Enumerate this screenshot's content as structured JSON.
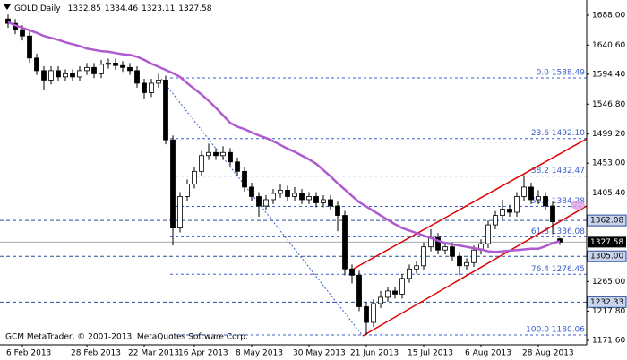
{
  "chart_data": {
    "type": "candlestick",
    "symbol": "GOLD,Daily",
    "footer": "GCM MetaTrader, © 2001-2013, MetaQuotes Software Corp.",
    "categories": [
      null,
      null,
      "6 Feb 2013",
      null,
      null,
      null,
      null,
      null,
      null,
      null,
      null,
      "28 Feb 2013",
      null,
      null,
      null,
      null,
      null,
      null,
      null,
      "22 Mar 2013",
      null,
      null,
      null,
      null,
      null,
      null,
      "16 Apr 2013",
      null,
      null,
      null,
      null,
      null,
      null,
      null,
      "8 May 2013",
      null,
      null,
      null,
      null,
      null,
      null,
      null,
      "30 May 2013",
      null,
      null,
      null,
      null,
      null,
      null,
      null,
      "21 Jun 2013",
      null,
      null,
      null,
      null,
      null,
      null,
      null,
      "15 Jul 2013",
      null,
      null,
      null,
      null,
      null,
      null,
      null,
      "6 Aug 2013",
      null,
      null,
      null,
      null,
      null,
      null,
      null,
      "28 Aug 2013",
      null,
      null,
      null
    ],
    "open": [
      1682,
      1675,
      1665,
      1655,
      1620,
      1600,
      1585,
      1600,
      1590,
      1595,
      1590,
      1600,
      1605,
      1595,
      1610,
      1612,
      1608,
      1605,
      1600,
      1580,
      1565,
      1580,
      1585,
      1490,
      1350,
      1400,
      1420,
      1440,
      1465,
      1470,
      1465,
      1470,
      1455,
      1440,
      1415,
      1400,
      1385,
      1395,
      1405,
      1410,
      1400,
      1405,
      1395,
      1400,
      1390,
      1395,
      1385,
      1370,
      1285,
      1275,
      1225,
      1200,
      1230,
      1240,
      1250,
      1245,
      1270,
      1285,
      1290,
      1320,
      1335,
      1315,
      1320,
      1305,
      1290,
      1295,
      1315,
      1325,
      1355,
      1370,
      1380,
      1375,
      1400,
      1415,
      1395,
      1400,
      1385,
      1332.85
    ],
    "high": [
      1689,
      1682,
      1672,
      1662,
      1627,
      1607,
      1607,
      1607,
      1602,
      1602,
      1607,
      1612,
      1612,
      1617,
      1619,
      1619,
      1615,
      1612,
      1607,
      1587,
      1587,
      1595,
      1592,
      1497,
      1407,
      1427,
      1447,
      1472,
      1484,
      1477,
      1480,
      1477,
      1462,
      1447,
      1422,
      1407,
      1402,
      1412,
      1420,
      1417,
      1415,
      1412,
      1407,
      1407,
      1402,
      1402,
      1392,
      1377,
      1292,
      1282,
      1232,
      1237,
      1250,
      1257,
      1257,
      1277,
      1292,
      1297,
      1327,
      1348,
      1342,
      1327,
      1327,
      1312,
      1302,
      1322,
      1332,
      1362,
      1377,
      1395,
      1387,
      1407,
      1434,
      1422,
      1410,
      1407,
      1392,
      1334.46
    ],
    "low": [
      1668,
      1658,
      1648,
      1613,
      1593,
      1570,
      1578,
      1583,
      1583,
      1583,
      1583,
      1593,
      1588,
      1588,
      1603,
      1601,
      1598,
      1593,
      1573,
      1555,
      1558,
      1573,
      1483,
      1322,
      1343,
      1393,
      1413,
      1433,
      1458,
      1458,
      1458,
      1448,
      1433,
      1408,
      1393,
      1368,
      1378,
      1388,
      1398,
      1393,
      1393,
      1388,
      1388,
      1383,
      1383,
      1378,
      1345,
      1275,
      1262,
      1218,
      1180,
      1193,
      1223,
      1233,
      1238,
      1238,
      1263,
      1278,
      1283,
      1313,
      1308,
      1308,
      1298,
      1275,
      1283,
      1288,
      1308,
      1318,
      1348,
      1363,
      1368,
      1368,
      1393,
      1388,
      1388,
      1378,
      1340,
      1323.11
    ],
    "close": [
      1675,
      1665,
      1655,
      1620,
      1600,
      1585,
      1600,
      1590,
      1595,
      1590,
      1600,
      1605,
      1595,
      1610,
      1612,
      1608,
      1605,
      1600,
      1580,
      1565,
      1580,
      1585,
      1490,
      1350,
      1400,
      1420,
      1440,
      1465,
      1470,
      1465,
      1470,
      1455,
      1440,
      1415,
      1400,
      1385,
      1395,
      1405,
      1410,
      1400,
      1405,
      1395,
      1400,
      1390,
      1395,
      1385,
      1370,
      1285,
      1275,
      1225,
      1200,
      1230,
      1240,
      1250,
      1245,
      1270,
      1285,
      1290,
      1320,
      1335,
      1315,
      1320,
      1305,
      1290,
      1295,
      1315,
      1325,
      1355,
      1370,
      1380,
      1375,
      1400,
      1415,
      1395,
      1400,
      1385,
      1360,
      1327.58
    ],
    "ma": {
      "color": "#b05ad0",
      "values": [
        1677,
        1672,
        1668,
        1664,
        1660,
        1655,
        1652,
        1649,
        1645,
        1642,
        1639,
        1635,
        1633,
        1631,
        1630,
        1628,
        1626,
        1625,
        1622,
        1617,
        1611,
        1606,
        1601,
        1596,
        1590,
        1580,
        1571,
        1562,
        1552,
        1541,
        1529,
        1517,
        1511,
        1507,
        1502,
        1497,
        1493,
        1488,
        1482,
        1476,
        1471,
        1465,
        1459,
        1452,
        1442,
        1432,
        1421,
        1411,
        1401,
        1391,
        1384,
        1377,
        1370,
        1363,
        1356,
        1350,
        1346,
        1342,
        1338,
        1334,
        1330,
        1326,
        1324,
        1322,
        1320,
        1318,
        1316,
        1313,
        1312,
        1313,
        1314,
        1315,
        1316,
        1317,
        1317,
        1321,
        1326,
        1329
      ]
    },
    "ylim": [
      1164.5,
      1712.2
    ],
    "yticks": [
      {
        "value": 1688,
        "label": "1688.00"
      },
      {
        "value": 1640.6,
        "label": "1640.60"
      },
      {
        "value": 1594.4,
        "label": "1594.40"
      },
      {
        "value": 1546.8,
        "label": "1546.80"
      },
      {
        "value": 1499.2,
        "label": "1499.20"
      },
      {
        "value": 1453,
        "label": "1453.00"
      },
      {
        "value": 1405.4,
        "label": "1405.40"
      },
      {
        "value": 1265,
        "label": "1265.00"
      },
      {
        "value": 1217.8,
        "label": "1217.80"
      },
      {
        "value": 1171.6,
        "label": "1171.60"
      }
    ],
    "price_levels": [
      {
        "value": 1362.08,
        "label": "1362.08"
      },
      {
        "value": 1305,
        "label": "1305.00"
      },
      {
        "value": 1232.33,
        "label": "1232.33"
      }
    ],
    "fib_levels": [
      {
        "value": 1588.49,
        "label": "0.0 1588.49"
      },
      {
        "value": 1492.1,
        "label": "23.6 1492.10"
      },
      {
        "value": 1432.47,
        "label": "38.2 1432.47"
      },
      {
        "value": 1384.28,
        "label": "50.0 1384.28"
      },
      {
        "value": 1336.08,
        "label": "61.8 1336.08"
      },
      {
        "value": 1276.45,
        "label": "76.4 1276.45"
      },
      {
        "value": 1180.06,
        "label": "100.0 1180.06"
      }
    ],
    "fib_color": "#3a5fcd"
  }
}
